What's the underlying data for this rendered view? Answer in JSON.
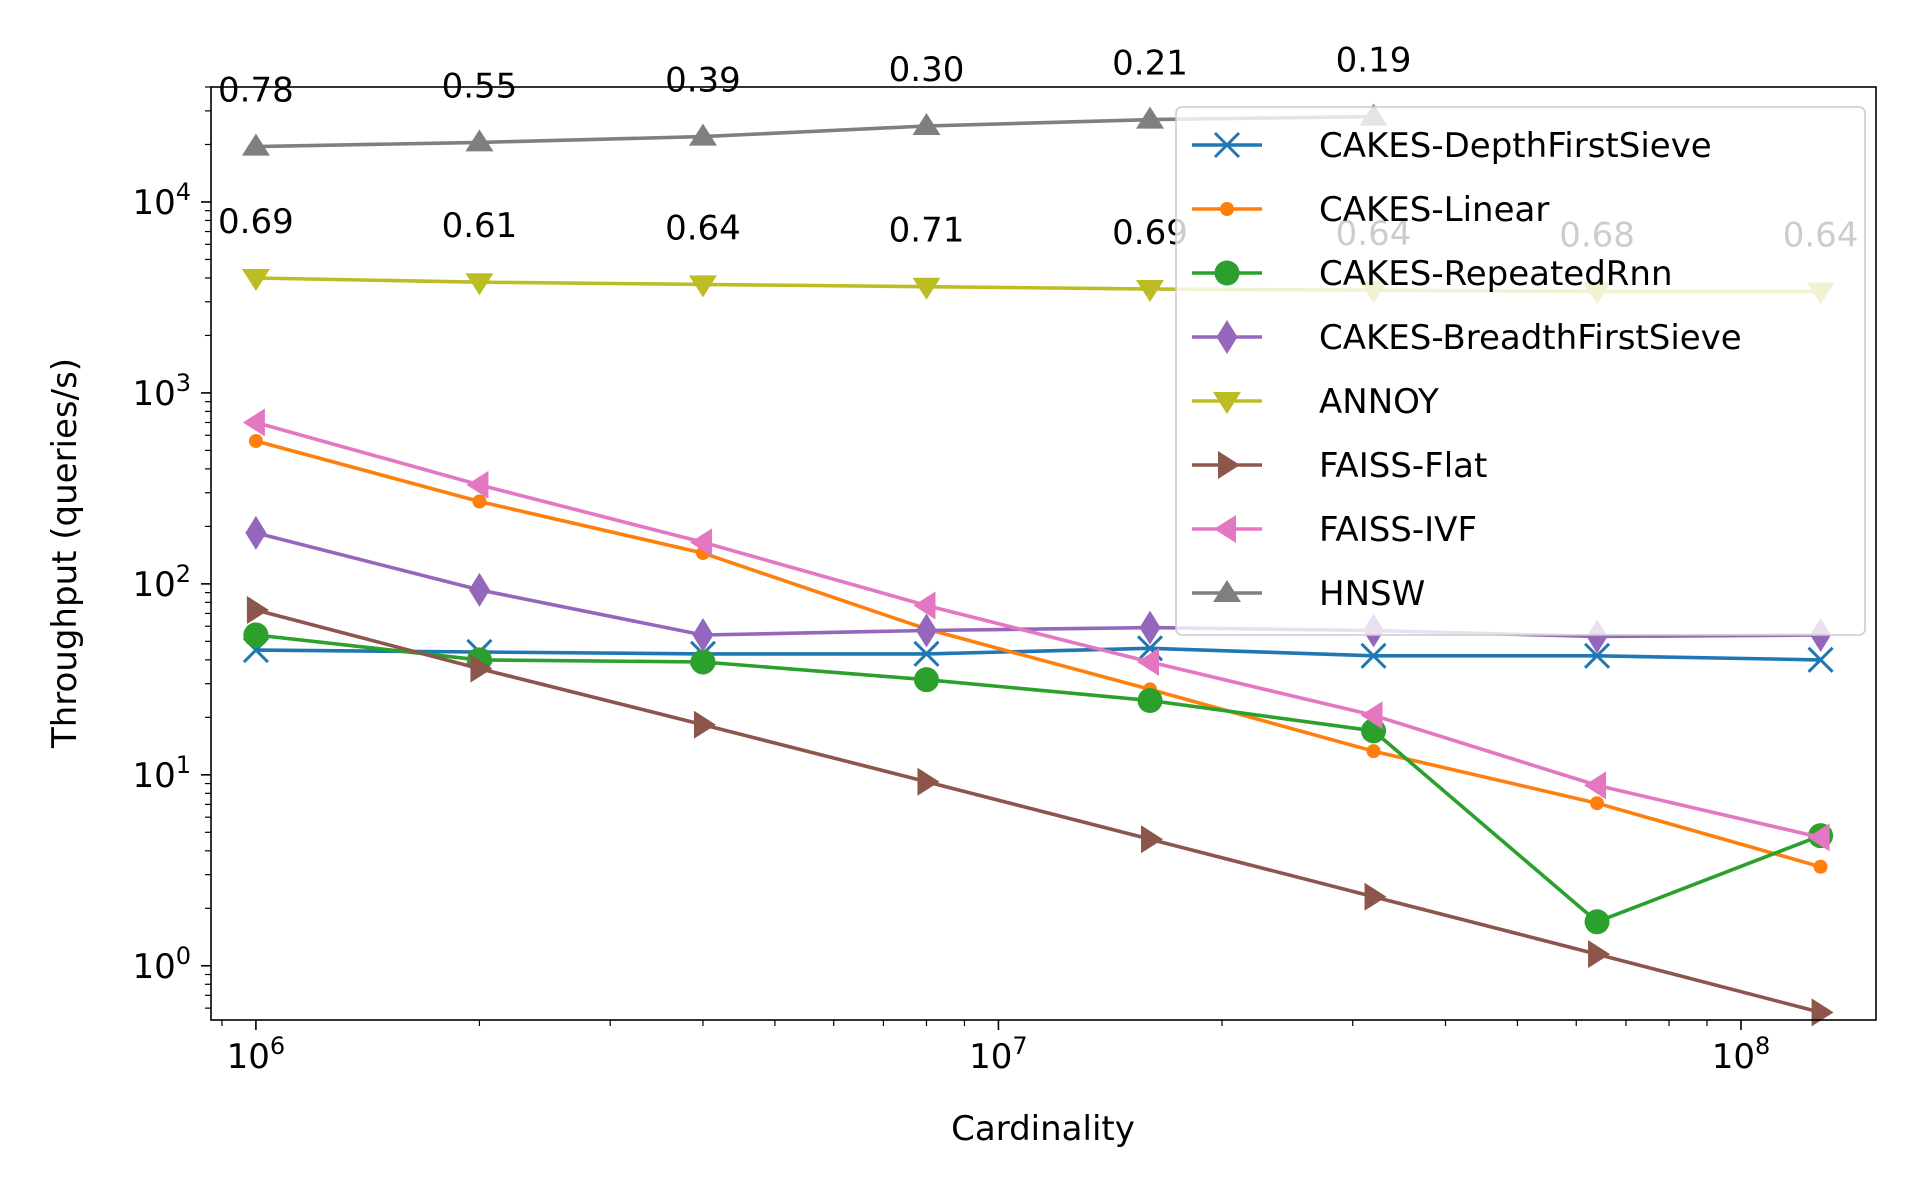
{
  "chart_data": {
    "type": "line",
    "title": "",
    "xlabel": "Cardinality",
    "ylabel": "Throughput (queries/s)",
    "xscale": "log",
    "yscale": "log",
    "xlim": [
      870000,
      152000000
    ],
    "ylim": [
      0.52,
      40000
    ],
    "grid": false,
    "legend_position": "upper-right",
    "x_ticks": [
      {
        "value": 1000000,
        "base": "10",
        "exp": "6"
      },
      {
        "value": 10000000,
        "base": "10",
        "exp": "7"
      },
      {
        "value": 100000000,
        "base": "10",
        "exp": "8"
      }
    ],
    "y_ticks": [
      {
        "value": 1,
        "base": "10",
        "exp": "0"
      },
      {
        "value": 10,
        "base": "10",
        "exp": "1"
      },
      {
        "value": 100,
        "base": "10",
        "exp": "2"
      },
      {
        "value": 1000,
        "base": "10",
        "exp": "3"
      },
      {
        "value": 10000,
        "base": "10",
        "exp": "4"
      }
    ],
    "x": [
      1000000,
      2000000,
      4000000,
      8000000,
      16000000,
      32000000,
      64000000,
      128000000
    ],
    "series": [
      {
        "name": "CAKES-DepthFirstSieve",
        "color": "#1f77b4",
        "marker": "x",
        "values": [
          45,
          44,
          43,
          43,
          46,
          42,
          42,
          40
        ]
      },
      {
        "name": "CAKES-Linear",
        "color": "#ff7f0e",
        "marker": "dot",
        "values": [
          560,
          270,
          145,
          58,
          28,
          13.3,
          7.1,
          3.3
        ]
      },
      {
        "name": "CAKES-RepeatedRnn",
        "color": "#2ca02c",
        "marker": "circle",
        "values": [
          54,
          40,
          39,
          31.5,
          24.5,
          17,
          1.7,
          4.8
        ]
      },
      {
        "name": "CAKES-BreadthFirstSieve",
        "color": "#9467bd",
        "marker": "thin-diamond",
        "values": [
          185,
          93,
          54,
          57,
          59,
          57,
          53,
          54
        ]
      },
      {
        "name": "ANNOY",
        "color": "#bcbd22",
        "marker": "triangle-down",
        "values": [
          4000,
          3800,
          3700,
          3600,
          3500,
          3450,
          3400,
          3400
        ]
      },
      {
        "name": "FAISS-Flat",
        "color": "#8c564b",
        "marker": "triangle-right",
        "values": [
          73,
          36,
          18.3,
          9.2,
          4.6,
          2.3,
          1.15,
          0.57
        ]
      },
      {
        "name": "FAISS-IVF",
        "color": "#e377c2",
        "marker": "triangle-left",
        "values": [
          700,
          330,
          165,
          77,
          39,
          20.5,
          8.8,
          4.7
        ]
      },
      {
        "name": "HNSW",
        "color": "#7f7f7f",
        "marker": "triangle-up",
        "values": [
          19500,
          20500,
          22000,
          25000,
          27000,
          28000,
          null,
          null
        ]
      }
    ],
    "annotations": [
      {
        "series": "HNSW",
        "labels": [
          "0.78",
          "0.55",
          "0.39",
          "0.30",
          "0.21",
          "0.19"
        ]
      },
      {
        "series": "ANNOY",
        "labels": [
          "0.69",
          "0.61",
          "0.64",
          "0.71",
          "0.69",
          "0.64",
          "0.68",
          "0.64"
        ]
      }
    ]
  }
}
